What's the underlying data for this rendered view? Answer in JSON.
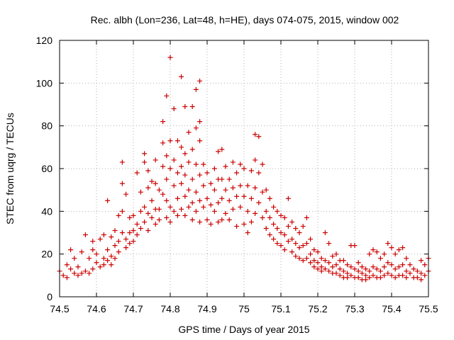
{
  "chart_data": {
    "type": "scatter",
    "title": "Rec. albh (Lon=236, Lat=48, h=HE), days 074-075, 2015, window 002",
    "xlabel": "GPS time / Days of year 2015",
    "ylabel": "STEC from uqrg / TECUs",
    "xlim": [
      74.5,
      75.5
    ],
    "ylim": [
      0,
      120
    ],
    "xticks": [
      74.5,
      74.6,
      74.7,
      74.8,
      74.9,
      75.0,
      75.1,
      75.2,
      75.3,
      75.4,
      75.5
    ],
    "xtick_labels": [
      "74.5",
      "74.6",
      "74.7",
      "74.8",
      "74.9",
      "75",
      "75.1",
      "75.2",
      "75.3",
      "75.4",
      "75.5"
    ],
    "yticks": [
      0,
      20,
      40,
      60,
      80,
      100,
      120
    ],
    "ytick_labels": [
      "0",
      "20",
      "40",
      "60",
      "80",
      "100",
      "120"
    ],
    "grid": true,
    "marker": "+",
    "color": "#cc0000",
    "series": [
      {
        "points": [
          [
            74.5,
            12
          ],
          [
            74.51,
            10
          ],
          [
            74.52,
            15
          ],
          [
            74.52,
            9
          ],
          [
            74.53,
            13
          ],
          [
            74.53,
            22
          ],
          [
            74.54,
            18
          ],
          [
            74.54,
            11
          ],
          [
            74.55,
            10
          ],
          [
            74.55,
            14
          ],
          [
            74.56,
            21
          ],
          [
            74.56,
            11
          ],
          [
            74.57,
            12
          ],
          [
            74.57,
            29
          ],
          [
            74.58,
            18
          ],
          [
            74.58,
            11
          ],
          [
            74.59,
            22
          ],
          [
            74.59,
            13
          ],
          [
            74.59,
            26
          ],
          [
            74.6,
            20
          ],
          [
            74.6,
            16
          ],
          [
            74.61,
            27
          ],
          [
            74.61,
            14
          ],
          [
            74.62,
            18
          ],
          [
            74.62,
            29
          ],
          [
            74.62,
            15
          ],
          [
            74.63,
            45
          ],
          [
            74.63,
            22
          ],
          [
            74.63,
            17
          ],
          [
            74.64,
            19
          ],
          [
            74.64,
            28
          ],
          [
            74.64,
            15
          ],
          [
            74.65,
            31
          ],
          [
            74.65,
            24
          ],
          [
            74.65,
            18
          ],
          [
            74.66,
            38
          ],
          [
            74.66,
            26
          ],
          [
            74.66,
            21
          ],
          [
            74.67,
            63
          ],
          [
            74.67,
            53
          ],
          [
            74.67,
            40
          ],
          [
            74.67,
            30
          ],
          [
            74.68,
            48
          ],
          [
            74.68,
            27
          ],
          [
            74.68,
            23
          ],
          [
            74.69,
            37
          ],
          [
            74.69,
            30
          ],
          [
            74.69,
            25
          ],
          [
            74.7,
            38
          ],
          [
            74.7,
            31
          ],
          [
            74.7,
            26
          ],
          [
            74.71,
            58
          ],
          [
            74.71,
            34
          ],
          [
            74.71,
            29
          ],
          [
            74.72,
            49
          ],
          [
            74.72,
            40
          ],
          [
            74.72,
            32
          ],
          [
            74.73,
            67
          ],
          [
            74.73,
            63
          ],
          [
            74.73,
            42
          ],
          [
            74.73,
            35
          ],
          [
            74.74,
            59
          ],
          [
            74.74,
            51
          ],
          [
            74.74,
            39
          ],
          [
            74.74,
            31
          ],
          [
            74.75,
            54
          ],
          [
            74.75,
            45
          ],
          [
            74.75,
            37
          ],
          [
            74.76,
            64
          ],
          [
            74.76,
            53
          ],
          [
            74.76,
            41
          ],
          [
            74.76,
            34
          ],
          [
            74.77,
            50
          ],
          [
            74.77,
            41
          ],
          [
            74.77,
            36
          ],
          [
            74.78,
            82
          ],
          [
            74.78,
            72
          ],
          [
            74.78,
            61
          ],
          [
            74.78,
            48
          ],
          [
            74.79,
            94
          ],
          [
            74.79,
            66
          ],
          [
            74.79,
            55
          ],
          [
            74.79,
            45
          ],
          [
            74.79,
            37
          ],
          [
            74.8,
            112
          ],
          [
            74.8,
            73
          ],
          [
            74.8,
            60
          ],
          [
            74.8,
            42
          ],
          [
            74.8,
            35
          ],
          [
            74.81,
            88
          ],
          [
            74.81,
            64
          ],
          [
            74.81,
            52
          ],
          [
            74.81,
            40
          ],
          [
            74.82,
            73
          ],
          [
            74.82,
            58
          ],
          [
            74.82,
            46
          ],
          [
            74.82,
            38
          ],
          [
            74.83,
            103
          ],
          [
            74.83,
            70
          ],
          [
            74.83,
            61
          ],
          [
            74.83,
            53
          ],
          [
            74.83,
            41
          ],
          [
            74.84,
            89
          ],
          [
            74.84,
            67
          ],
          [
            74.84,
            57
          ],
          [
            74.84,
            47
          ],
          [
            74.84,
            38
          ],
          [
            74.85,
            77
          ],
          [
            74.85,
            63
          ],
          [
            74.85,
            50
          ],
          [
            74.85,
            42
          ],
          [
            74.86,
            89
          ],
          [
            74.86,
            69
          ],
          [
            74.86,
            55
          ],
          [
            74.86,
            44
          ],
          [
            74.86,
            36
          ],
          [
            74.87,
            97
          ],
          [
            74.87,
            79
          ],
          [
            74.87,
            62
          ],
          [
            74.87,
            49
          ],
          [
            74.87,
            40
          ],
          [
            74.88,
            101
          ],
          [
            74.88,
            82
          ],
          [
            74.88,
            73
          ],
          [
            74.88,
            57
          ],
          [
            74.88,
            45
          ],
          [
            74.88,
            35
          ],
          [
            74.89,
            62
          ],
          [
            74.89,
            52
          ],
          [
            74.89,
            42
          ],
          [
            74.9,
            58
          ],
          [
            74.9,
            46
          ],
          [
            74.9,
            36
          ],
          [
            74.91,
            53
          ],
          [
            74.91,
            43
          ],
          [
            74.91,
            34
          ],
          [
            74.92,
            60
          ],
          [
            74.92,
            50
          ],
          [
            74.92,
            40
          ],
          [
            74.93,
            68
          ],
          [
            74.93,
            55
          ],
          [
            74.93,
            44
          ],
          [
            74.93,
            35
          ],
          [
            74.94,
            69
          ],
          [
            74.94,
            55
          ],
          [
            74.94,
            46
          ],
          [
            74.94,
            36
          ],
          [
            74.95,
            61
          ],
          [
            74.95,
            50
          ],
          [
            74.95,
            39
          ],
          [
            74.96,
            55
          ],
          [
            74.96,
            45
          ],
          [
            74.96,
            36
          ],
          [
            74.97,
            63
          ],
          [
            74.97,
            51
          ],
          [
            74.97,
            41
          ],
          [
            74.98,
            58
          ],
          [
            74.98,
            47
          ],
          [
            74.98,
            33
          ],
          [
            74.99,
            62
          ],
          [
            74.99,
            52
          ],
          [
            74.99,
            42
          ],
          [
            75.0,
            60
          ],
          [
            75.0,
            47
          ],
          [
            75.0,
            34
          ],
          [
            75.01,
            52
          ],
          [
            75.01,
            40
          ],
          [
            75.01,
            30
          ],
          [
            75.02,
            59
          ],
          [
            75.02,
            46
          ],
          [
            75.02,
            35
          ],
          [
            75.03,
            76
          ],
          [
            75.03,
            64
          ],
          [
            75.03,
            51
          ],
          [
            75.03,
            39
          ],
          [
            75.04,
            75
          ],
          [
            75.04,
            58
          ],
          [
            75.04,
            44
          ],
          [
            75.05,
            62
          ],
          [
            75.05,
            49
          ],
          [
            75.05,
            37
          ],
          [
            75.06,
            50
          ],
          [
            75.06,
            40
          ],
          [
            75.06,
            32
          ],
          [
            75.07,
            46
          ],
          [
            75.07,
            37
          ],
          [
            75.07,
            29
          ],
          [
            75.08,
            42
          ],
          [
            75.08,
            34
          ],
          [
            75.08,
            27
          ],
          [
            75.09,
            40
          ],
          [
            75.09,
            32
          ],
          [
            75.09,
            25
          ],
          [
            75.1,
            38
          ],
          [
            75.1,
            30
          ],
          [
            75.1,
            24
          ],
          [
            75.11,
            37
          ],
          [
            75.11,
            29
          ],
          [
            75.11,
            22
          ],
          [
            75.12,
            46
          ],
          [
            75.12,
            33
          ],
          [
            75.12,
            26
          ],
          [
            75.13,
            35
          ],
          [
            75.13,
            27
          ],
          [
            75.13,
            21
          ],
          [
            75.14,
            32
          ],
          [
            75.14,
            25
          ],
          [
            75.14,
            19
          ],
          [
            75.15,
            30
          ],
          [
            75.15,
            23
          ],
          [
            75.15,
            18
          ],
          [
            75.16,
            33
          ],
          [
            75.16,
            24
          ],
          [
            75.16,
            17
          ],
          [
            75.17,
            37
          ],
          [
            75.17,
            25
          ],
          [
            75.17,
            18
          ],
          [
            75.18,
            27
          ],
          [
            75.18,
            20
          ],
          [
            75.18,
            16
          ],
          [
            75.19,
            22
          ],
          [
            75.19,
            17
          ],
          [
            75.19,
            14
          ],
          [
            75.2,
            21
          ],
          [
            75.2,
            16
          ],
          [
            75.2,
            13
          ],
          [
            75.21,
            18
          ],
          [
            75.21,
            14
          ],
          [
            75.21,
            12
          ],
          [
            75.22,
            30
          ],
          [
            75.22,
            17
          ],
          [
            75.22,
            13
          ],
          [
            75.23,
            25
          ],
          [
            75.23,
            16
          ],
          [
            75.23,
            12
          ],
          [
            75.24,
            19
          ],
          [
            75.24,
            14
          ],
          [
            75.24,
            11
          ],
          [
            75.25,
            20
          ],
          [
            75.25,
            15
          ],
          [
            75.25,
            11
          ],
          [
            75.26,
            17
          ],
          [
            75.26,
            13
          ],
          [
            75.26,
            10
          ],
          [
            75.27,
            17
          ],
          [
            75.27,
            12
          ],
          [
            75.27,
            9
          ],
          [
            75.28,
            15
          ],
          [
            75.28,
            11
          ],
          [
            75.28,
            9
          ],
          [
            75.29,
            24
          ],
          [
            75.29,
            14
          ],
          [
            75.29,
            10
          ],
          [
            75.3,
            24
          ],
          [
            75.3,
            13
          ],
          [
            75.3,
            9
          ],
          [
            75.31,
            16
          ],
          [
            75.31,
            12
          ],
          [
            75.31,
            9
          ],
          [
            75.32,
            14
          ],
          [
            75.32,
            11
          ],
          [
            75.32,
            8
          ],
          [
            75.33,
            13
          ],
          [
            75.33,
            10
          ],
          [
            75.33,
            8
          ],
          [
            75.34,
            20
          ],
          [
            75.34,
            12
          ],
          [
            75.34,
            9
          ],
          [
            75.35,
            22
          ],
          [
            75.35,
            14
          ],
          [
            75.35,
            10
          ],
          [
            75.36,
            21
          ],
          [
            75.36,
            13
          ],
          [
            75.36,
            9
          ],
          [
            75.37,
            18
          ],
          [
            75.37,
            12
          ],
          [
            75.37,
            9
          ],
          [
            75.38,
            20
          ],
          [
            75.38,
            14
          ],
          [
            75.38,
            10
          ],
          [
            75.39,
            25
          ],
          [
            75.39,
            16
          ],
          [
            75.39,
            11
          ],
          [
            75.4,
            23
          ],
          [
            75.4,
            15
          ],
          [
            75.4,
            10
          ],
          [
            75.41,
            20
          ],
          [
            75.41,
            13
          ],
          [
            75.41,
            9
          ],
          [
            75.42,
            22
          ],
          [
            75.42,
            14
          ],
          [
            75.42,
            10
          ],
          [
            75.43,
            23
          ],
          [
            75.43,
            15
          ],
          [
            75.43,
            10
          ],
          [
            75.44,
            18
          ],
          [
            75.44,
            12
          ],
          [
            75.44,
            9
          ],
          [
            75.45,
            15
          ],
          [
            75.45,
            11
          ],
          [
            75.46,
            13
          ],
          [
            75.46,
            9
          ],
          [
            75.47,
            12
          ],
          [
            75.47,
            9
          ],
          [
            75.48,
            17
          ],
          [
            75.48,
            11
          ],
          [
            75.48,
            8
          ],
          [
            75.49,
            15
          ],
          [
            75.49,
            10
          ],
          [
            75.5,
            18
          ],
          [
            75.5,
            12
          ]
        ]
      }
    ]
  }
}
